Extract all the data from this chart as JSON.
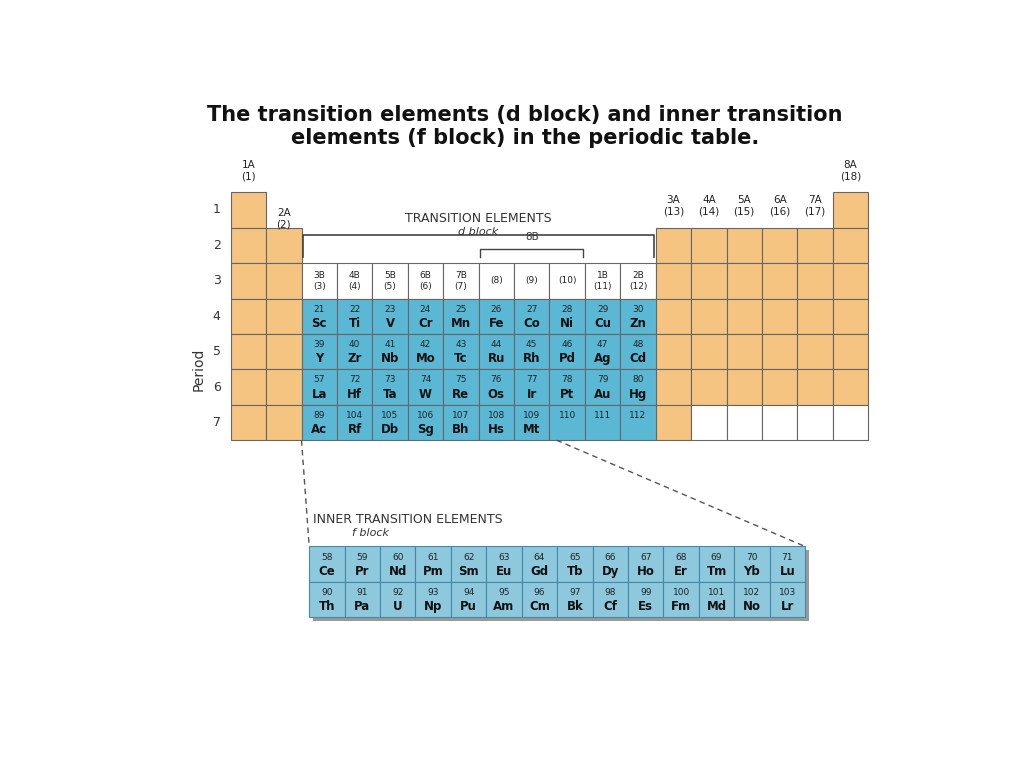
{
  "title": "The transition elements (d block) and inner transition\nelements (f block) in the periodic table.",
  "title_fontsize": 15,
  "bg_color": "#ffffff",
  "s_block_color": "#F5C480",
  "p_block_color": "#F5C480",
  "d_block_color": "#5BB8D4",
  "f_block_color": "#8EC8DC",
  "empty_color": "#ffffff",
  "cell_edge_color": "#666666",
  "d_elements": [
    [
      21,
      "Sc",
      22,
      "Ti",
      23,
      "V",
      24,
      "Cr",
      25,
      "Mn",
      26,
      "Fe",
      27,
      "Co",
      28,
      "Ni",
      29,
      "Cu",
      30,
      "Zn"
    ],
    [
      39,
      "Y",
      40,
      "Zr",
      41,
      "Nb",
      42,
      "Mo",
      43,
      "Tc",
      44,
      "Ru",
      45,
      "Rh",
      46,
      "Pd",
      47,
      "Ag",
      48,
      "Cd"
    ],
    [
      57,
      "La",
      72,
      "Hf",
      73,
      "Ta",
      74,
      "W",
      75,
      "Re",
      76,
      "Os",
      77,
      "Ir",
      78,
      "Pt",
      79,
      "Au",
      80,
      "Hg"
    ],
    [
      89,
      "Ac",
      104,
      "Rf",
      105,
      "Db",
      106,
      "Sg",
      107,
      "Bh",
      108,
      "Hs",
      109,
      "Mt",
      110,
      "",
      111,
      "",
      112,
      ""
    ]
  ],
  "f_elements_row1": [
    [
      58,
      "Ce"
    ],
    [
      59,
      "Pr"
    ],
    [
      60,
      "Nd"
    ],
    [
      61,
      "Pm"
    ],
    [
      62,
      "Sm"
    ],
    [
      63,
      "Eu"
    ],
    [
      64,
      "Gd"
    ],
    [
      65,
      "Tb"
    ],
    [
      66,
      "Dy"
    ],
    [
      67,
      "Ho"
    ],
    [
      68,
      "Er"
    ],
    [
      69,
      "Tm"
    ],
    [
      70,
      "Yb"
    ],
    [
      71,
      "Lu"
    ]
  ],
  "f_elements_row2": [
    [
      90,
      "Th"
    ],
    [
      91,
      "Pa"
    ],
    [
      92,
      "U"
    ],
    [
      93,
      "Np"
    ],
    [
      94,
      "Pu"
    ],
    [
      95,
      "Am"
    ],
    [
      96,
      "Cm"
    ],
    [
      97,
      "Bk"
    ],
    [
      98,
      "Cf"
    ],
    [
      99,
      "Es"
    ],
    [
      100,
      "Fm"
    ],
    [
      101,
      "Md"
    ],
    [
      102,
      "No"
    ],
    [
      103,
      "Lr"
    ]
  ]
}
